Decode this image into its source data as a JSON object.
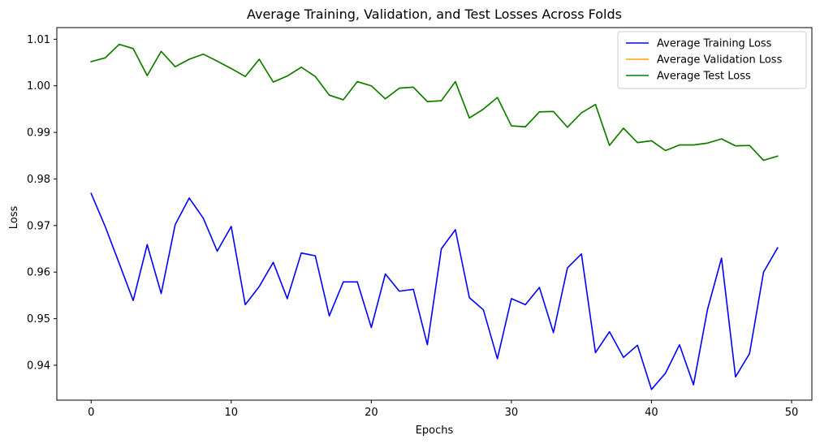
{
  "chart_data": {
    "type": "line",
    "title": "Average Training, Validation, and Test Losses Across Folds",
    "xlabel": "Epochs",
    "ylabel": "Loss",
    "xlim": [
      -2.45,
      51.45
    ],
    "ylim": [
      0.9325,
      1.0125
    ],
    "xticks": [
      0,
      10,
      20,
      30,
      40,
      50
    ],
    "yticks": [
      0.94,
      0.95,
      0.96,
      0.97,
      0.98,
      0.99,
      1.0,
      1.01
    ],
    "ytick_labels": [
      "0.94",
      "0.95",
      "0.96",
      "0.97",
      "0.98",
      "0.99",
      "1.00",
      "1.01"
    ],
    "grid": false,
    "legend_position": "top-right",
    "x": [
      0,
      1,
      2,
      3,
      4,
      5,
      6,
      7,
      8,
      9,
      10,
      11,
      12,
      13,
      14,
      15,
      16,
      17,
      18,
      19,
      20,
      21,
      22,
      23,
      24,
      25,
      26,
      27,
      28,
      29,
      30,
      31,
      32,
      33,
      34,
      35,
      36,
      37,
      38,
      39,
      40,
      41,
      42,
      43,
      44,
      45,
      46,
      47,
      48,
      49
    ],
    "series": [
      {
        "name": "Average Training Loss",
        "color": "#0000ff",
        "values": [
          0.9769,
          0.9698,
          0.9619,
          0.9539,
          0.9659,
          0.9554,
          0.9702,
          0.9759,
          0.9716,
          0.9645,
          0.9698,
          0.953,
          0.9569,
          0.9621,
          0.9543,
          0.9641,
          0.9635,
          0.9506,
          0.9579,
          0.9579,
          0.9481,
          0.9596,
          0.9559,
          0.9563,
          0.9444,
          0.965,
          0.9691,
          0.9545,
          0.9519,
          0.9414,
          0.9543,
          0.953,
          0.9567,
          0.947,
          0.9609,
          0.9639,
          0.9427,
          0.9472,
          0.9417,
          0.9443,
          0.9348,
          0.9383,
          0.9444,
          0.9358,
          0.952,
          0.963,
          0.9375,
          0.9425,
          0.96,
          0.9652
        ]
      },
      {
        "name": "Average Validation Loss",
        "color": "#ffa500",
        "values": [
          1.0052,
          1.006,
          1.0089,
          1.008,
          1.0022,
          1.0074,
          1.0041,
          1.0057,
          1.0068,
          1.0053,
          1.0037,
          1.002,
          1.0057,
          1.0008,
          1.0021,
          1.004,
          1.002,
          0.998,
          0.997,
          1.0009,
          1.0,
          0.9972,
          0.9995,
          0.9997,
          0.9966,
          0.9968,
          1.0009,
          0.9931,
          0.995,
          0.9975,
          0.9914,
          0.9912,
          0.9944,
          0.9945,
          0.9911,
          0.9942,
          0.996,
          0.9872,
          0.9909,
          0.9878,
          0.9882,
          0.9861,
          0.9873,
          0.9873,
          0.9877,
          0.9886,
          0.9871,
          0.9872,
          0.984,
          0.9849
        ]
      },
      {
        "name": "Average Test Loss",
        "color": "#008000",
        "values": [
          1.0052,
          1.006,
          1.0089,
          1.008,
          1.0022,
          1.0074,
          1.0041,
          1.0057,
          1.0068,
          1.0053,
          1.0037,
          1.002,
          1.0057,
          1.0008,
          1.0021,
          1.004,
          1.002,
          0.998,
          0.997,
          1.0009,
          1.0,
          0.9972,
          0.9995,
          0.9997,
          0.9966,
          0.9968,
          1.0009,
          0.9931,
          0.995,
          0.9975,
          0.9914,
          0.9912,
          0.9944,
          0.9945,
          0.9911,
          0.9942,
          0.996,
          0.9872,
          0.9909,
          0.9878,
          0.9882,
          0.9861,
          0.9873,
          0.9873,
          0.9877,
          0.9886,
          0.9871,
          0.9872,
          0.984,
          0.9849
        ]
      }
    ]
  }
}
